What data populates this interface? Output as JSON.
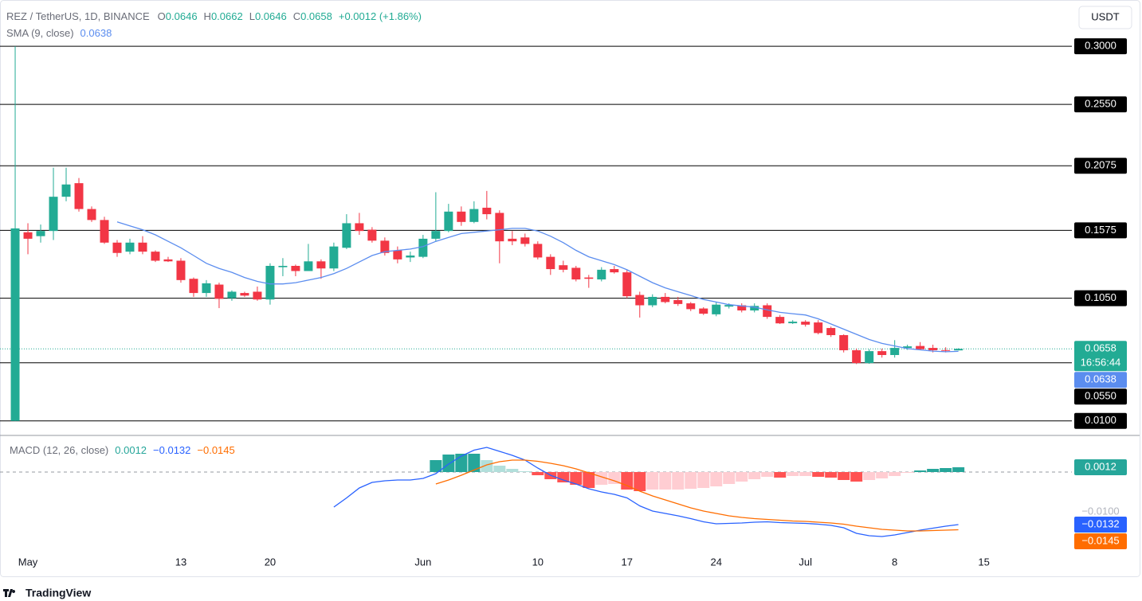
{
  "header": {
    "ohlc_keys": [
      "O",
      "H",
      "L",
      "C"
    ],
    "change": "+0.0012 (+1.86%)",
    "currency": "USDT"
  },
  "chart_data": [
    {
      "type": "candlestick",
      "title": "REZ / TetherUS, 1D, BINANCE",
      "xlim": [
        -1.19,
        82.9
      ],
      "ylim": [
        0,
        0.329
      ],
      "up_color": "#22ab94",
      "down_color": "#f23645",
      "open": [
        0.01,
        0.156,
        0.153,
        0.157,
        0.1835,
        0.194,
        0.174,
        0.1655,
        0.148,
        0.141,
        0.148,
        0.141,
        0.135,
        0.134,
        0.12,
        0.109,
        0.1155,
        0.105,
        0.109,
        0.11,
        0.104,
        0.129,
        0.13,
        0.126,
        0.1335,
        0.128,
        0.144,
        0.163,
        0.158,
        0.1495,
        0.142,
        0.1365,
        0.137,
        0.151,
        0.157,
        0.172,
        0.164,
        0.175,
        0.171,
        0.151,
        0.152,
        0.147,
        0.137,
        0.1305,
        0.1285,
        0.121,
        0.1195,
        0.1275,
        0.125,
        0.1075,
        0.0995,
        0.106,
        0.1035,
        0.101,
        0.097,
        0.0925,
        0.0985,
        0.0995,
        0.0955,
        0.0995,
        0.0905,
        0.0856,
        0.0868,
        0.0862,
        0.0819,
        0.0764,
        0.0647,
        0.0548,
        0.064,
        0.061,
        0.0665,
        0.068,
        0.0665,
        0.0648,
        0.0646
      ],
      "high": [
        0.3,
        0.163,
        0.162,
        0.206,
        0.206,
        0.198,
        0.176,
        0.168,
        0.15,
        0.151,
        0.153,
        0.142,
        0.137,
        0.136,
        0.121,
        0.119,
        0.117,
        0.111,
        0.11,
        0.114,
        0.132,
        0.136,
        0.131,
        0.147,
        0.135,
        0.148,
        0.17,
        0.171,
        0.16,
        0.152,
        0.145,
        0.141,
        0.154,
        0.187,
        0.178,
        0.176,
        0.18,
        0.188,
        0.173,
        0.157,
        0.155,
        0.149,
        0.139,
        0.134,
        0.13,
        0.123,
        0.129,
        0.13,
        0.127,
        0.11,
        0.108,
        0.109,
        0.106,
        0.102,
        0.098,
        0.102,
        0.101,
        0.101,
        0.101,
        0.101,
        0.092,
        0.088,
        0.088,
        0.088,
        0.083,
        0.077,
        0.066,
        0.0655,
        0.066,
        0.0725,
        0.069,
        0.071,
        0.069,
        0.067,
        0.0662
      ],
      "low": [
        0.01,
        0.139,
        0.148,
        0.15,
        0.18,
        0.172,
        0.164,
        0.147,
        0.137,
        0.139,
        0.139,
        0.133,
        0.133,
        0.117,
        0.106,
        0.106,
        0.0973,
        0.103,
        0.106,
        0.103,
        0.1,
        0.122,
        0.122,
        0.126,
        0.12,
        0.126,
        0.143,
        0.154,
        0.148,
        0.138,
        0.132,
        0.133,
        0.136,
        0.149,
        0.156,
        0.161,
        0.163,
        0.166,
        0.132,
        0.146,
        0.145,
        0.135,
        0.123,
        0.125,
        0.118,
        0.113,
        0.118,
        0.124,
        0.105,
        0.09,
        0.098,
        0.101,
        0.099,
        0.095,
        0.092,
        0.091,
        0.097,
        0.094,
        0.094,
        0.089,
        0.085,
        0.085,
        0.083,
        0.077,
        0.075,
        0.063,
        0.054,
        0.0542,
        0.059,
        0.059,
        0.065,
        0.065,
        0.063,
        0.063,
        0.0646
      ],
      "close": [
        0.159,
        0.151,
        0.157,
        0.1835,
        0.193,
        0.174,
        0.1655,
        0.148,
        0.14,
        0.148,
        0.141,
        0.134,
        0.1335,
        0.119,
        0.109,
        0.1165,
        0.1045,
        0.11,
        0.107,
        0.104,
        0.13,
        0.13,
        0.126,
        0.1335,
        0.128,
        0.145,
        0.163,
        0.157,
        0.1495,
        0.14,
        0.135,
        0.138,
        0.151,
        0.157,
        0.172,
        0.164,
        0.174,
        0.17,
        0.149,
        0.149,
        0.147,
        0.1365,
        0.1275,
        0.127,
        0.1195,
        0.12,
        0.127,
        0.125,
        0.1065,
        0.0995,
        0.106,
        0.102,
        0.1005,
        0.0965,
        0.093,
        0.1,
        0.0997,
        0.0955,
        0.099,
        0.0905,
        0.0855,
        0.0868,
        0.0845,
        0.078,
        0.0764,
        0.0647,
        0.0548,
        0.064,
        0.061,
        0.0665,
        0.0677,
        0.0655,
        0.0647,
        0.0646,
        0.0658
      ],
      "series": [
        {
          "name": "SMA (9, close)",
          "color": "#5b8def",
          "values": [
            null,
            null,
            null,
            null,
            null,
            null,
            null,
            null,
            0.164,
            0.161,
            0.158,
            0.154,
            0.149,
            0.144,
            0.138,
            0.132,
            0.128,
            0.125,
            0.121,
            0.118,
            0.116,
            0.116,
            0.117,
            0.119,
            0.121,
            0.124,
            0.128,
            0.133,
            0.138,
            0.141,
            0.142,
            0.143,
            0.145,
            0.149,
            0.152,
            0.155,
            0.156,
            0.157,
            0.158,
            0.159,
            0.159,
            0.157,
            0.153,
            0.148,
            0.142,
            0.137,
            0.134,
            0.131,
            0.127,
            0.122,
            0.117,
            0.113,
            0.11,
            0.107,
            0.104,
            0.102,
            0.1,
            0.099,
            0.098,
            0.096,
            0.094,
            0.093,
            0.092,
            0.089,
            0.085,
            0.081,
            0.077,
            0.073,
            0.07,
            0.068,
            0.066,
            0.065,
            0.064,
            0.0635,
            0.0638
          ]
        }
      ],
      "levels": [
        {
          "value": 0.3,
          "label": "0.3000"
        },
        {
          "value": 0.255,
          "label": "0.2550"
        },
        {
          "value": 0.2075,
          "label": "0.2075"
        },
        {
          "value": 0.1575,
          "label": "0.1575"
        },
        {
          "value": 0.105,
          "label": "0.1050"
        },
        {
          "value": 0.055,
          "label": "0.0550"
        },
        {
          "value": 0.01,
          "label": "0.0100"
        }
      ],
      "level_color": "#000000",
      "countdown": "16:56:44"
    },
    {
      "type": "macd",
      "title": "MACD (12, 26, close)",
      "xlim": [
        -1.19,
        82.9
      ],
      "ylim": [
        -0.0264,
        0.009
      ],
      "yticks": [
        {
          "value": -0.01,
          "label": "−0.0100"
        }
      ],
      "xticks": [
        {
          "value": 1,
          "label": "May"
        },
        {
          "value": 13,
          "label": "13"
        },
        {
          "value": 20,
          "label": "20"
        },
        {
          "value": 32,
          "label": "Jun"
        },
        {
          "value": 41,
          "label": "10"
        },
        {
          "value": 48,
          "label": "17"
        },
        {
          "value": 55,
          "label": "24"
        },
        {
          "value": 62,
          "label": "Jul"
        },
        {
          "value": 69,
          "label": "8"
        },
        {
          "value": 76,
          "label": "15"
        }
      ],
      "histogram": {
        "colors": {
          "up_rising": "#26a69a",
          "up_falling": "#b2dfdb",
          "down_falling": "#ff5252",
          "down_rising": "#ffcdd2"
        },
        "values": [
          null,
          null,
          null,
          null,
          null,
          null,
          null,
          null,
          null,
          null,
          null,
          null,
          null,
          null,
          null,
          null,
          null,
          null,
          null,
          null,
          null,
          null,
          null,
          null,
          null,
          null,
          null,
          null,
          null,
          null,
          null,
          null,
          null,
          0.003,
          0.0044,
          0.0046,
          0.0046,
          0.003,
          0.0016,
          0.0008,
          0.0002,
          -0.0008,
          -0.0018,
          -0.0026,
          -0.0032,
          -0.004,
          -0.0032,
          -0.003,
          -0.0044,
          -0.0048,
          -0.0044,
          -0.0044,
          -0.0044,
          -0.0042,
          -0.004,
          -0.0036,
          -0.003,
          -0.0024,
          -0.0018,
          -0.0012,
          -0.0014,
          -0.001,
          -0.001,
          -0.0012,
          -0.0014,
          -0.002,
          -0.0024,
          -0.002,
          -0.0016,
          -0.001,
          -0.0002,
          0.0004,
          0.0008,
          0.001,
          0.0012
        ]
      },
      "lines": [
        {
          "color": "#2962ff",
          "last_label": "−0.0132",
          "values": [
            null,
            null,
            null,
            null,
            null,
            null,
            null,
            null,
            null,
            null,
            null,
            null,
            null,
            null,
            null,
            null,
            null,
            null,
            null,
            null,
            null,
            null,
            null,
            null,
            null,
            -0.0088,
            -0.0065,
            -0.004,
            -0.0026,
            -0.0022,
            -0.002,
            -0.002,
            -0.0016,
            -0.0004,
            0.002,
            0.004,
            0.0055,
            0.0062,
            0.0052,
            0.0042,
            0.003,
            0.001,
            -0.0008,
            -0.002,
            -0.003,
            -0.0042,
            -0.005,
            -0.0056,
            -0.0065,
            -0.0085,
            -0.0098,
            -0.0104,
            -0.011,
            -0.0117,
            -0.0125,
            -0.013,
            -0.0129,
            -0.0128,
            -0.0126,
            -0.0125,
            -0.0127,
            -0.0128,
            -0.0129,
            -0.0131,
            -0.0134,
            -0.014,
            -0.0154,
            -0.016,
            -0.0162,
            -0.0158,
            -0.0152,
            -0.0146,
            -0.0141,
            -0.0136,
            -0.0132
          ]
        },
        {
          "color": "#ff6d00",
          "last_label": "−0.0145",
          "values": [
            null,
            null,
            null,
            null,
            null,
            null,
            null,
            null,
            null,
            null,
            null,
            null,
            null,
            null,
            null,
            null,
            null,
            null,
            null,
            null,
            null,
            null,
            null,
            null,
            null,
            null,
            null,
            null,
            null,
            null,
            null,
            null,
            null,
            -0.003,
            -0.002,
            -0.0008,
            0.0005,
            0.0018,
            0.0026,
            0.003,
            0.003,
            0.0027,
            0.0022,
            0.0016,
            0.0008,
            -0.0002,
            -0.0012,
            -0.0022,
            -0.0034,
            -0.0048,
            -0.006,
            -0.007,
            -0.008,
            -0.009,
            -0.0098,
            -0.0104,
            -0.011,
            -0.0114,
            -0.0117,
            -0.0119,
            -0.0121,
            -0.0123,
            -0.0124,
            -0.0126,
            -0.0128,
            -0.0131,
            -0.0136,
            -0.014,
            -0.0144,
            -0.0146,
            -0.0148,
            -0.0148,
            -0.0147,
            -0.0146,
            -0.0145
          ]
        }
      ]
    }
  ],
  "footer": {
    "brand": "TradingView"
  }
}
